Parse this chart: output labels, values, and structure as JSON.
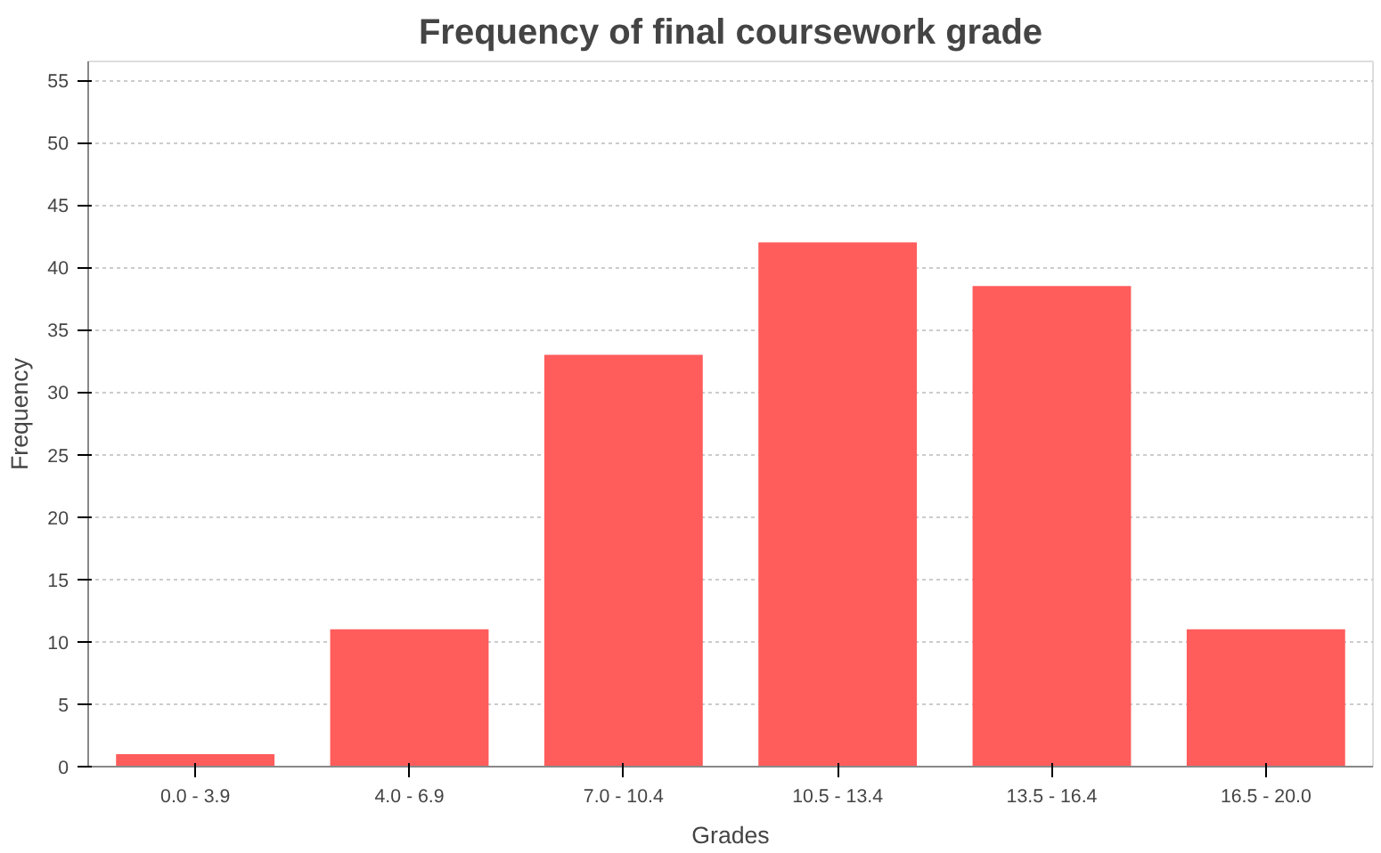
{
  "chart_data": {
    "type": "bar",
    "title": "Frequency of final coursework grade",
    "xlabel": "Grades",
    "ylabel": "Frequency",
    "categories": [
      "0.0 - 3.9",
      "4.0 - 6.9",
      "7.0 - 10.4",
      "10.5 - 13.4",
      "13.5 - 16.4",
      "16.5 - 20.0"
    ],
    "values": [
      1,
      11,
      33,
      42,
      38.5,
      11
    ],
    "color": "#ff5c5c",
    "ylim": [
      0,
      56.5
    ],
    "yticks": [
      0,
      5,
      10,
      15,
      20,
      25,
      30,
      35,
      40,
      45,
      50,
      55
    ],
    "grid": "y"
  }
}
